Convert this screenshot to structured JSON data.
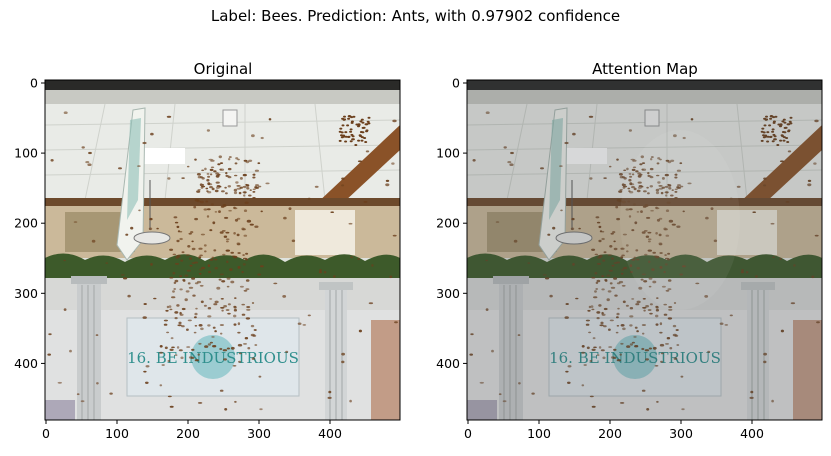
{
  "figure": {
    "suptitle": "Label: Bees. Prediction: Ants, with 0.97902 confidence"
  },
  "panels": [
    {
      "title": "Original",
      "image_description_name": "bee-swarm-storefront-photo",
      "yticks": [
        "0",
        "100",
        "200",
        "300",
        "400"
      ],
      "xticks": [
        "0",
        "100",
        "200",
        "300",
        "400"
      ]
    },
    {
      "title": "Attention Map",
      "image_description_name": "bee-swarm-storefront-attention-overlay",
      "yticks": [
        "0",
        "100",
        "200",
        "300",
        "400"
      ],
      "xticks": [
        "0",
        "100",
        "200",
        "300",
        "400"
      ]
    }
  ],
  "sign_text": "16. BE INDUSTRIOUS",
  "colors": {
    "ceiling": "#e9ebe7",
    "wood_beam": "#8a5228",
    "foliage": "#3d5a2a",
    "sign": "#dfe6ea",
    "sign_text": "#2f8f8d",
    "bee": "#6b3f1c"
  }
}
